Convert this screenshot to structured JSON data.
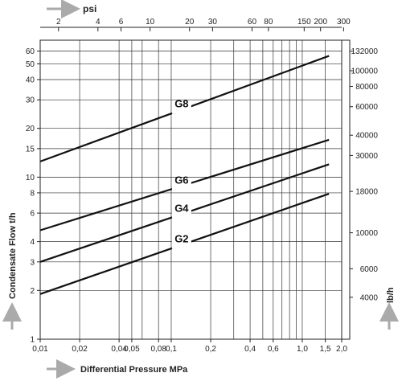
{
  "chart_data": {
    "type": "line",
    "title": "",
    "xlabel": "Differential Pressure MPa",
    "ylabel": "Condensate Flow t/h",
    "x_scale": "log",
    "y_scale": "log",
    "xlim": [
      0.01,
      2.0
    ],
    "ylim": [
      1,
      70
    ],
    "grid": true,
    "x_ticks": [
      {
        "v": 0.01,
        "label": "0,01"
      },
      {
        "v": 0.02,
        "label": "0,02"
      },
      {
        "v": 0.04,
        "label": "0,04"
      },
      {
        "v": 0.05,
        "label": "0,05"
      },
      {
        "v": 0.08,
        "label": "0,08"
      },
      {
        "v": 0.1,
        "label": "0,1"
      },
      {
        "v": 0.2,
        "label": "0,2"
      },
      {
        "v": 0.4,
        "label": "0,4"
      },
      {
        "v": 0.6,
        "label": "0,6"
      },
      {
        "v": 1.0,
        "label": "1,0"
      },
      {
        "v": 1.5,
        "label": "1,5"
      },
      {
        "v": 2.0,
        "label": "2,0"
      }
    ],
    "x_grid": [
      0.02,
      0.04,
      0.05,
      0.06,
      0.08,
      0.1,
      0.2,
      0.3,
      0.4,
      0.5,
      0.6,
      0.7,
      0.8,
      0.9,
      1.0,
      1.5
    ],
    "y_ticks": [
      1,
      2,
      3,
      4,
      6,
      8,
      10,
      15,
      20,
      30,
      40,
      50,
      60
    ],
    "y_grid": [
      2,
      3,
      4,
      6,
      8,
      10,
      15,
      20,
      30,
      40,
      50,
      60
    ],
    "top_axis": {
      "unit": "psi",
      "ticks": [
        2,
        4,
        6,
        10,
        20,
        30,
        60,
        80,
        150,
        200,
        300
      ],
      "mpa_per_unit": 0.006895
    },
    "right_axis": {
      "unit": "lb/h",
      "ticks": [
        132000,
        100000,
        80000,
        60000,
        40000,
        30000,
        18000,
        10000,
        6000,
        4000
      ],
      "th_per_unit": 0.00045359
    },
    "series": [
      {
        "name": "G8",
        "x": [
          0.01,
          1.6
        ],
        "y": [
          12.5,
          56
        ]
      },
      {
        "name": "G6",
        "x": [
          0.01,
          1.6
        ],
        "y": [
          4.7,
          17
        ]
      },
      {
        "name": "G4",
        "x": [
          0.01,
          1.6
        ],
        "y": [
          3.0,
          12
        ]
      },
      {
        "name": "G2",
        "x": [
          0.01,
          1.6
        ],
        "y": [
          1.9,
          7.9
        ]
      }
    ],
    "series_label_at_x": 0.12
  }
}
